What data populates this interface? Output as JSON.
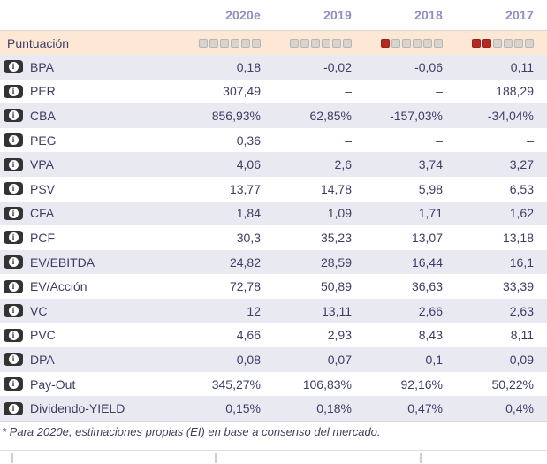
{
  "table": {
    "columns": [
      "2020e",
      "2019",
      "2018",
      "2017"
    ],
    "score_row": {
      "label": "Puntuación",
      "max": 6,
      "scores": [
        0,
        0,
        1,
        2
      ]
    },
    "rows": [
      {
        "label": "BPA",
        "values": [
          "0,18",
          "-0,02",
          "-0,06",
          "0,11"
        ]
      },
      {
        "label": "PER",
        "values": [
          "307,49",
          "–",
          "–",
          "188,29"
        ]
      },
      {
        "label": "CBA",
        "values": [
          "856,93%",
          "62,85%",
          "-157,03%",
          "-34,04%"
        ]
      },
      {
        "label": "PEG",
        "values": [
          "0,36",
          "–",
          "–",
          "–"
        ]
      },
      {
        "label": "VPA",
        "values": [
          "4,06",
          "2,6",
          "3,74",
          "3,27"
        ]
      },
      {
        "label": "PSV",
        "values": [
          "13,77",
          "14,78",
          "5,98",
          "6,53"
        ]
      },
      {
        "label": "CFA",
        "values": [
          "1,84",
          "1,09",
          "1,71",
          "1,62"
        ]
      },
      {
        "label": "PCF",
        "values": [
          "30,3",
          "35,23",
          "13,07",
          "13,18"
        ]
      },
      {
        "label": "EV/EBITDA",
        "values": [
          "24,82",
          "28,59",
          "16,44",
          "16,1"
        ]
      },
      {
        "label": "EV/Acción",
        "values": [
          "72,78",
          "50,89",
          "36,63",
          "33,39"
        ]
      },
      {
        "label": "VC",
        "values": [
          "12",
          "13,11",
          "2,66",
          "2,63"
        ]
      },
      {
        "label": "PVC",
        "values": [
          "4,66",
          "2,93",
          "8,43",
          "8,11"
        ]
      },
      {
        "label": "DPA",
        "values": [
          "0,08",
          "0,07",
          "0,1",
          "0,09"
        ]
      },
      {
        "label": "Pay-Out",
        "values": [
          "345,27%",
          "106,83%",
          "92,16%",
          "50,22%"
        ]
      },
      {
        "label": "Dividendo-YIELD",
        "values": [
          "0,15%",
          "0,18%",
          "0,47%",
          "0,4%"
        ]
      }
    ],
    "footnote": "* Para 2020e, estimaciones propias (EI) en base a consenso del mercado."
  },
  "icons": {
    "info": "i"
  },
  "colors": {
    "header_text": "#8f8fc4",
    "score_row_bg": "#fce8d5",
    "alt_row_bg": "#e9e9f1",
    "body_text": "#3d3d66",
    "score_filled": "#b02b25",
    "score_empty": "#d8d5d0",
    "icon_bg": "#333333"
  }
}
